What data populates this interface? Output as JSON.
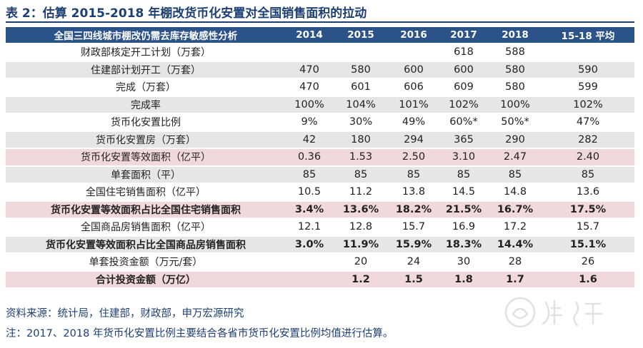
{
  "title": "表 2：估算 2015-2018 年棚改货币化安置对全国销售面积的拉动",
  "header": [
    "全国三四线城市棚改仍需去库存敏感性分析",
    "2014",
    "2015",
    "2016",
    "2017",
    "2018",
    "15-18 平均"
  ],
  "rows": [
    {
      "label": "财政部核定开工计划（万套）",
      "values": [
        "",
        "",
        "",
        "618",
        "588",
        ""
      ],
      "style": "white",
      "bold": false
    },
    {
      "label": "住建部计划开工（万套）",
      "values": [
        "470",
        "580",
        "600",
        "600",
        "580",
        "590"
      ],
      "style": "gray",
      "bold": false
    },
    {
      "label": "完成（万套）",
      "values": [
        "470",
        "601",
        "606",
        "609",
        "580",
        "599"
      ],
      "style": "white",
      "bold": false
    },
    {
      "label": "完成率",
      "values": [
        "100%",
        "104%",
        "101%",
        "102%",
        "100%",
        "102%"
      ],
      "style": "gray",
      "bold": false
    },
    {
      "label": "货币化安置比例",
      "values": [
        "9%",
        "30%",
        "49%",
        "60%*",
        "50%*",
        "47%"
      ],
      "style": "white",
      "bold": false
    },
    {
      "label": "货币化安置房（万套）",
      "values": [
        "42",
        "180",
        "294",
        "365",
        "290",
        "282"
      ],
      "style": "gray",
      "bold": false
    },
    {
      "label": "货币化安置等效面积（亿平）",
      "values": [
        "0.36",
        "1.53",
        "2.50",
        "3.10",
        "2.47",
        "2.40"
      ],
      "style": "pink",
      "bold": false
    },
    {
      "label": "单套面积（平）",
      "values": [
        "85",
        "85",
        "85",
        "85",
        "85",
        "85"
      ],
      "style": "gray",
      "bold": false
    },
    {
      "label": "全国住宅销售面积（亿平）",
      "values": [
        "10.5",
        "11.2",
        "13.8",
        "14.5",
        "14.8",
        "13.6"
      ],
      "style": "white",
      "bold": false
    },
    {
      "label": "货币化安置等效面积占比全国住宅销售面积",
      "values": [
        "3.4%",
        "13.6%",
        "18.2%",
        "21.5%",
        "16.7%",
        "17.5%"
      ],
      "style": "pink",
      "bold": true
    },
    {
      "label": "全国商品房销售面积（亿平）",
      "values": [
        "12.1",
        "12.8",
        "15.7",
        "16.9",
        "17.2",
        "15.7"
      ],
      "style": "white",
      "bold": false
    },
    {
      "label": "货币化安置等效面积占比全国商品房销售面积",
      "values": [
        "3.0%",
        "11.9%",
        "15.9%",
        "18.3%",
        "14.4%",
        "15.1%"
      ],
      "style": "gray",
      "bold": true
    },
    {
      "label": "单套投资金额（万元/套）",
      "values": [
        "",
        "20",
        "24",
        "30",
        "28",
        "26"
      ],
      "style": "white",
      "bold": false
    },
    {
      "label": "合计投资金额（万亿）",
      "values": [
        "",
        "1.2",
        "1.5",
        "1.8",
        "1.7",
        "1.6"
      ],
      "style": "pink",
      "bold": true
    }
  ],
  "source": "资料来源：统计局，住建部，财政部，申万宏源研究",
  "footnote": "注：2017、2018 年货币化安置比例主要结合各省市货币化安置比例均值进行估算。",
  "watermark": {
    "icon": "brand-watermark-icon",
    "color": "#c9c9c9"
  }
}
